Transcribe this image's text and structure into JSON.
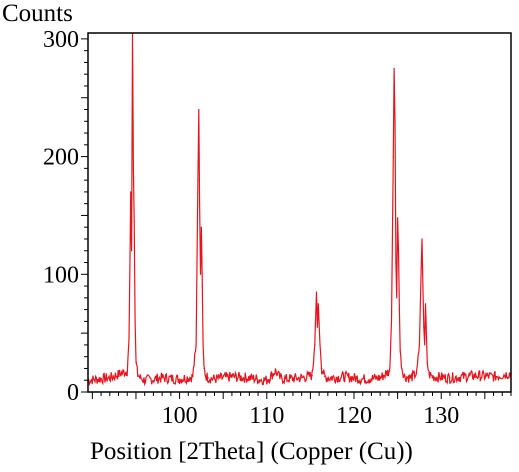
{
  "chart_data": {
    "type": "line",
    "xlabel": "Position [2Theta] (Copper (Cu))",
    "ylabel": "Counts",
    "xlim": [
      89.5,
      138
    ],
    "ylim": [
      0,
      305
    ],
    "x_ticks": [
      100,
      110,
      120,
      130
    ],
    "y_ticks": [
      0,
      100,
      200,
      300
    ],
    "grid": false,
    "legend": "none",
    "color": "#e8141c",
    "baseline": 10,
    "series": [
      {
        "x": [
          89.5,
          92,
          94.0,
          94.2,
          94.4,
          94.5,
          94.6,
          94.7,
          94.8,
          94.9,
          95.0,
          95.2,
          95.5,
          96,
          98,
          100,
          101.5,
          101.9,
          102.1,
          102.2,
          102.3,
          102.4,
          102.5,
          102.6,
          102.7,
          102.8,
          103.0,
          103.3,
          104,
          106,
          108,
          110,
          111,
          111.5,
          112,
          114,
          115.2,
          115.5,
          115.7,
          115.8,
          115.9,
          116.0,
          116.1,
          116.3,
          116.6,
          117,
          119,
          121,
          123,
          124.1,
          124.3,
          124.5,
          124.6,
          124.7,
          124.8,
          124.9,
          125.0,
          125.1,
          125.2,
          125.3,
          125.5,
          125.8,
          126.5,
          127.2,
          127.5,
          127.7,
          127.8,
          127.9,
          128.0,
          128.1,
          128.2,
          128.3,
          128.4,
          128.6,
          129,
          131,
          134,
          136,
          138
        ],
        "y": [
          10,
          12,
          18,
          45,
          170,
          120,
          305,
          190,
          145,
          60,
          25,
          15,
          12,
          10,
          12,
          11,
          13,
          40,
          180,
          240,
          160,
          100,
          140,
          90,
          40,
          20,
          14,
          12,
          11,
          13,
          12,
          10,
          18,
          12,
          11,
          12,
          14,
          40,
          85,
          55,
          75,
          58,
          40,
          20,
          13,
          12,
          13,
          11,
          12,
          18,
          60,
          200,
          275,
          230,
          110,
          80,
          148,
          120,
          70,
          35,
          20,
          13,
          12,
          16,
          40,
          105,
          130,
          90,
          55,
          40,
          75,
          50,
          25,
          15,
          13,
          12,
          14,
          13,
          16
        ]
      }
    ]
  }
}
